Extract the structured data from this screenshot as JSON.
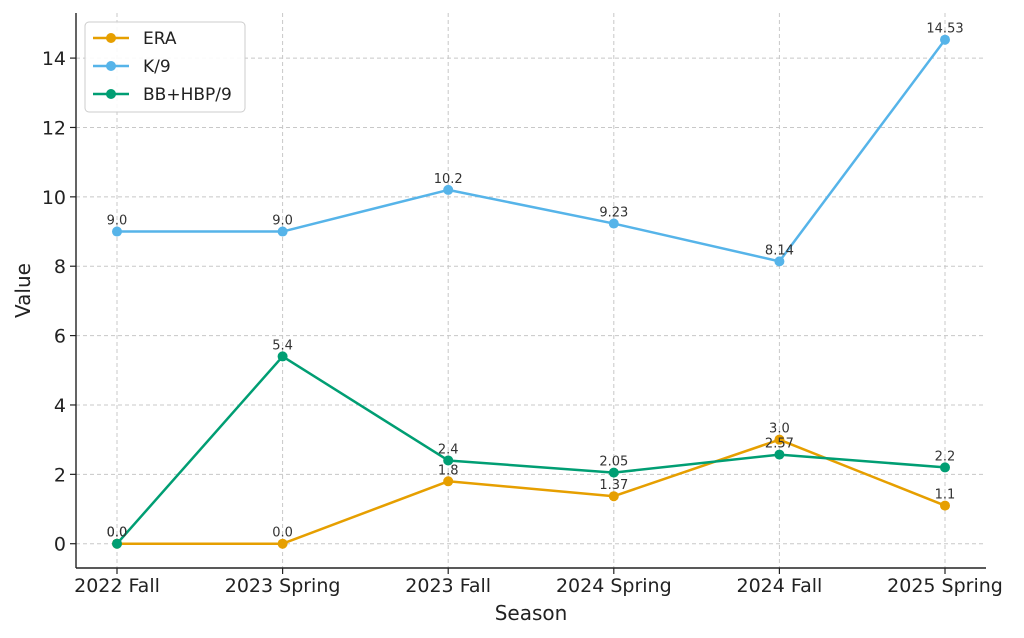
{
  "chart_data": {
    "type": "line",
    "categories": [
      "2022 Fall",
      "2023 Spring",
      "2023 Fall",
      "2024 Spring",
      "2024 Fall",
      "2025 Spring"
    ],
    "series": [
      {
        "name": "ERA",
        "color": "#E69F00",
        "values": [
          0.0,
          0.0,
          1.8,
          1.37,
          3.0,
          1.1
        ],
        "labels": [
          "0.0",
          "0.0",
          "1.8",
          "1.37",
          "3.0",
          "1.1"
        ]
      },
      {
        "name": "K/9",
        "color": "#56B4E9",
        "values": [
          9.0,
          9.0,
          10.2,
          9.23,
          8.14,
          14.53
        ],
        "labels": [
          "9.0",
          "9.0",
          "10.2",
          "9.23",
          "8.14",
          "14.53"
        ]
      },
      {
        "name": "BB+HBP/9",
        "color": "#009E73",
        "values": [
          0.0,
          5.4,
          2.4,
          2.05,
          2.57,
          2.2
        ],
        "labels": [
          "0.0",
          "5.4",
          "2.4",
          "2.05",
          "2.57",
          "2.2"
        ]
      }
    ],
    "xlabel": "Season",
    "ylabel": "Value",
    "ylim": [
      -0.7,
      15.3
    ],
    "yticks": [
      0,
      2,
      4,
      6,
      8,
      10,
      12,
      14
    ],
    "ytick_labels": [
      "0",
      "2",
      "4",
      "6",
      "8",
      "10",
      "12",
      "14"
    ],
    "grid": true,
    "legend_position": "top-left"
  }
}
